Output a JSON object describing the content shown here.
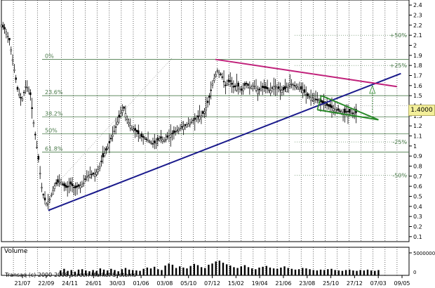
{
  "chart_data": {
    "type": "candlestick",
    "x_tick_labels": [
      "21/07",
      "22/09",
      "24/11",
      "26/01",
      "30/03",
      "01/06",
      "03/08",
      "05/10",
      "07/12",
      "15/02",
      "19/04",
      "21/06",
      "23/08",
      "25/10",
      "27/12",
      "07/03",
      "09/05"
    ],
    "y_ticks": [
      "2.4",
      "2.3",
      "2.2",
      "2.1",
      "2",
      "1.9",
      "1.8",
      "1.7",
      "1.6",
      "1.5",
      "1.4",
      "1.3",
      "1.2",
      "1.1",
      "1",
      "0.9",
      "0.8",
      "0.7",
      "0.6",
      "0.5",
      "0.4",
      "0.3",
      "0.2",
      "0.1"
    ],
    "ylim": [
      0.05,
      2.45
    ],
    "grid": true,
    "price_tag": "1.4000",
    "price_tag_value": 1.4,
    "volume_label": "Volume",
    "volume_tick": "5000000",
    "volume_zero": "0",
    "copyright": "Transaq (c) 2000-2008 Screen Market Systems",
    "fibonacci_levels": [
      {
        "label": "0%",
        "value": 1.86
      },
      {
        "label": "23.6%",
        "value": 1.5
      },
      {
        "label": "38.2%",
        "value": 1.29
      },
      {
        "label": "50%",
        "value": 1.12
      },
      {
        "label": "61.8%",
        "value": 0.94
      }
    ],
    "target_levels": [
      {
        "label": "+50%",
        "value": 2.1
      },
      {
        "label": "+25%",
        "value": 1.8
      },
      {
        "label": "-25%",
        "value": 1.04
      },
      {
        "label": "-50%",
        "value": 0.71
      }
    ],
    "trendlines": [
      {
        "name": "support",
        "color": "#1a1a8c",
        "from": [
          0.115,
          0.36
        ],
        "to": [
          0.98,
          1.72
        ]
      },
      {
        "name": "resistance",
        "color": "#c0207a",
        "from": [
          0.525,
          1.86
        ],
        "to": [
          0.97,
          1.59
        ]
      },
      {
        "name": "triangle-upper",
        "color": "#2a8a2a",
        "from": [
          0.785,
          1.5
        ],
        "to": [
          0.925,
          1.26
        ]
      },
      {
        "name": "triangle-lower",
        "color": "#2a8a2a",
        "from": [
          0.775,
          1.36
        ],
        "to": [
          0.925,
          1.26
        ]
      }
    ],
    "price_path": [
      [
        0.0,
        2.2
      ],
      [
        0.01,
        2.15
      ],
      [
        0.02,
        2.05
      ],
      [
        0.03,
        1.8
      ],
      [
        0.04,
        1.55
      ],
      [
        0.05,
        1.45
      ],
      [
        0.06,
        1.6
      ],
      [
        0.07,
        1.55
      ],
      [
        0.08,
        1.2
      ],
      [
        0.09,
        0.9
      ],
      [
        0.1,
        0.55
      ],
      [
        0.11,
        0.42
      ],
      [
        0.12,
        0.48
      ],
      [
        0.13,
        0.6
      ],
      [
        0.14,
        0.65
      ],
      [
        0.15,
        0.62
      ],
      [
        0.16,
        0.58
      ],
      [
        0.17,
        0.62
      ],
      [
        0.18,
        0.58
      ],
      [
        0.19,
        0.6
      ],
      [
        0.2,
        0.62
      ],
      [
        0.21,
        0.7
      ],
      [
        0.22,
        0.72
      ],
      [
        0.23,
        0.72
      ],
      [
        0.24,
        0.78
      ],
      [
        0.25,
        0.9
      ],
      [
        0.26,
        0.98
      ],
      [
        0.27,
        1.08
      ],
      [
        0.28,
        1.18
      ],
      [
        0.29,
        1.3
      ],
      [
        0.3,
        1.38
      ],
      [
        0.31,
        1.25
      ],
      [
        0.32,
        1.18
      ],
      [
        0.33,
        1.15
      ],
      [
        0.34,
        1.1
      ],
      [
        0.35,
        1.08
      ],
      [
        0.36,
        1.06
      ],
      [
        0.37,
        1.02
      ],
      [
        0.38,
        1.04
      ],
      [
        0.39,
        1.08
      ],
      [
        0.4,
        1.05
      ],
      [
        0.41,
        1.1
      ],
      [
        0.42,
        1.12
      ],
      [
        0.43,
        1.15
      ],
      [
        0.44,
        1.18
      ],
      [
        0.45,
        1.2
      ],
      [
        0.46,
        1.22
      ],
      [
        0.47,
        1.25
      ],
      [
        0.48,
        1.28
      ],
      [
        0.49,
        1.3
      ],
      [
        0.5,
        1.35
      ],
      [
        0.51,
        1.48
      ],
      [
        0.52,
        1.65
      ],
      [
        0.53,
        1.75
      ],
      [
        0.54,
        1.7
      ],
      [
        0.55,
        1.6
      ],
      [
        0.56,
        1.65
      ],
      [
        0.57,
        1.58
      ],
      [
        0.58,
        1.6
      ],
      [
        0.59,
        1.55
      ],
      [
        0.6,
        1.62
      ],
      [
        0.61,
        1.58
      ],
      [
        0.62,
        1.6
      ],
      [
        0.63,
        1.55
      ],
      [
        0.64,
        1.58
      ],
      [
        0.65,
        1.57
      ],
      [
        0.66,
        1.55
      ],
      [
        0.67,
        1.6
      ],
      [
        0.68,
        1.57
      ],
      [
        0.69,
        1.55
      ],
      [
        0.7,
        1.58
      ],
      [
        0.71,
        1.62
      ],
      [
        0.72,
        1.6
      ],
      [
        0.73,
        1.58
      ],
      [
        0.74,
        1.55
      ],
      [
        0.75,
        1.5
      ],
      [
        0.76,
        1.48
      ],
      [
        0.77,
        1.46
      ],
      [
        0.78,
        1.45
      ],
      [
        0.79,
        1.42
      ],
      [
        0.8,
        1.4
      ],
      [
        0.81,
        1.38
      ],
      [
        0.82,
        1.36
      ],
      [
        0.83,
        1.35
      ],
      [
        0.84,
        1.33
      ],
      [
        0.85,
        1.34
      ],
      [
        0.86,
        1.32
      ],
      [
        0.87,
        1.33
      ]
    ],
    "volume_bars": [
      1.2,
      1.6,
      1.1,
      1.3,
      0.9,
      1.4,
      1.5,
      1.2,
      1.0,
      1.3,
      1.1,
      1.7,
      1.4,
      1.2,
      1.6,
      1.3,
      1.0,
      1.5,
      1.8,
      1.4,
      1.3,
      1.2,
      1.1,
      1.6,
      1.9,
      1.7,
      2.1,
      1.5,
      1.3,
      2.4,
      2.9,
      2.6,
      1.8,
      2.2,
      1.9,
      1.7,
      2.3,
      2.8,
      2.5,
      2.0,
      1.8,
      2.6,
      2.9,
      3.4,
      3.6,
      3.1,
      2.7,
      2.4,
      2.0,
      1.8,
      2.2,
      2.5,
      2.0,
      1.7,
      1.5,
      1.9,
      2.1,
      2.3,
      1.9,
      1.7,
      1.6,
      1.9,
      2.2,
      1.8,
      1.6,
      1.4,
      1.5,
      1.8,
      1.7,
      1.5,
      1.3,
      1.2,
      1.4,
      1.3,
      1.5,
      1.6,
      1.3,
      1.2,
      1.1,
      1.3,
      1.4,
      1.2,
      1.1,
      1.3,
      1.2,
      1.4,
      1.2,
      1.1,
      1.3
    ]
  }
}
